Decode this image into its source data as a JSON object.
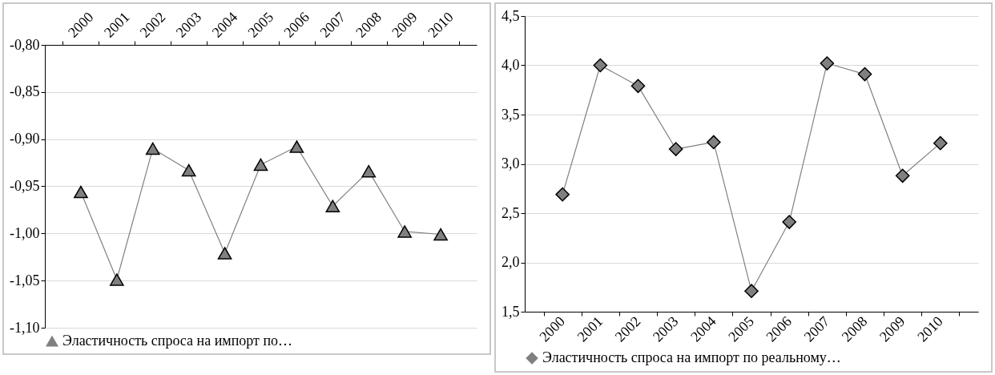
{
  "chart_data": [
    {
      "type": "line",
      "categories": [
        "2000",
        "2001",
        "2002",
        "2003",
        "2004",
        "2005",
        "2006",
        "2007",
        "2008",
        "2009",
        "2010"
      ],
      "series": [
        {
          "name": "Эластичность спроса на импорт по…",
          "color": "#808080",
          "values": [
            -0.956,
            -1.049,
            -0.91,
            -0.933,
            -1.021,
            -0.927,
            -0.908,
            -0.971,
            -0.934,
            -0.998,
            -1.001
          ]
        }
      ],
      "ylim": [
        -1.1,
        -0.8
      ],
      "yticks": [
        {
          "value": -1.1,
          "label": "-1,10"
        },
        {
          "value": -1.05,
          "label": "-1,05"
        },
        {
          "value": -1.0,
          "label": "-1,00"
        },
        {
          "value": -0.95,
          "label": "-0,95"
        },
        {
          "value": -0.9,
          "label": "-0,90"
        },
        {
          "value": -0.85,
          "label": "-0,85"
        },
        {
          "value": -0.8,
          "label": "-0,80"
        }
      ],
      "grid": "y",
      "legend": "bottom",
      "marker": "triangle",
      "line_style": "solid"
    },
    {
      "type": "line",
      "categories": [
        "2000",
        "2001",
        "2002",
        "2003",
        "2004",
        "2005",
        "2006",
        "2007",
        "2008",
        "2009",
        "2010"
      ],
      "series": [
        {
          "name": "Эластичность спроса на импорт по реальному…",
          "color": "#808080",
          "values": [
            2.69,
            4.0,
            3.79,
            3.15,
            3.22,
            1.71,
            2.41,
            4.02,
            3.91,
            2.88,
            3.21
          ]
        }
      ],
      "ylim": [
        1.5,
        4.5
      ],
      "yticks": [
        {
          "value": 1.5,
          "label": "1,5"
        },
        {
          "value": 2.0,
          "label": "2,0"
        },
        {
          "value": 2.5,
          "label": "2,5"
        },
        {
          "value": 3.0,
          "label": "3,0"
        },
        {
          "value": 3.5,
          "label": "3,5"
        },
        {
          "value": 4.0,
          "label": "4,0"
        },
        {
          "value": 4.5,
          "label": "4,5"
        }
      ],
      "grid": "y",
      "legend": "bottom",
      "marker": "diamond",
      "line_style": "solid"
    }
  ]
}
